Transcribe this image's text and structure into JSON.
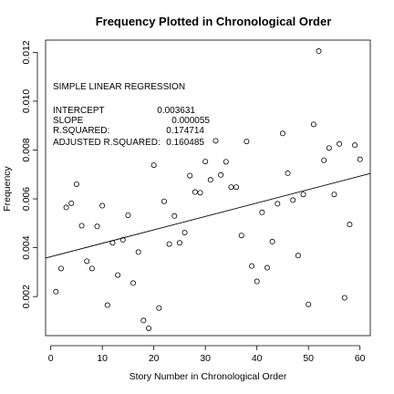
{
  "chart_data": {
    "type": "scatter",
    "title": "Frequency Plotted in Chronological Order",
    "xlabel": "Story Number in Chronological Order",
    "ylabel": "Frequency",
    "xlim": [
      -1,
      62
    ],
    "ylim": [
      0.0004,
      0.0125
    ],
    "xticks": [
      0,
      10,
      20,
      30,
      40,
      50,
      60
    ],
    "xtick_labels": [
      "0",
      "10",
      "20",
      "30",
      "40",
      "50",
      "60"
    ],
    "yticks": [
      0.002,
      0.004,
      0.006,
      0.008,
      0.01,
      0.012
    ],
    "ytick_labels": [
      "0.002",
      "0.004",
      "0.006",
      "0.008",
      "0.010",
      "0.012"
    ],
    "grid": false,
    "x": [
      1,
      2,
      3,
      4,
      5,
      6,
      7,
      8,
      9,
      10,
      11,
      12,
      13,
      14,
      15,
      16,
      17,
      18,
      19,
      20,
      21,
      22,
      23,
      24,
      25,
      26,
      27,
      28,
      29,
      30,
      31,
      32,
      33,
      34,
      35,
      36,
      37,
      38,
      39,
      40,
      41,
      42,
      43,
      44,
      45,
      46,
      47,
      48,
      49,
      50,
      51,
      52,
      53,
      54,
      55,
      56,
      57,
      58,
      59,
      60
    ],
    "y": [
      0.0022,
      0.00315,
      0.00565,
      0.00582,
      0.0066,
      0.0049,
      0.00345,
      0.00315,
      0.00487,
      0.00572,
      0.00165,
      0.0042,
      0.00288,
      0.00432,
      0.00533,
      0.00255,
      0.00382,
      0.00102,
      0.0007,
      0.00738,
      0.00153,
      0.0059,
      0.00415,
      0.0053,
      0.0042,
      0.00462,
      0.00695,
      0.00628,
      0.00625,
      0.00753,
      0.00678,
      0.00838,
      0.00698,
      0.00752,
      0.00648,
      0.00648,
      0.0045,
      0.00835,
      0.00325,
      0.00262,
      0.00545,
      0.00318,
      0.00425,
      0.0058,
      0.00868,
      0.00705,
      0.00595,
      0.00368,
      0.00618,
      0.00168,
      0.00905,
      0.01205,
      0.00758,
      0.00808,
      0.00618,
      0.00825,
      0.00195,
      0.00495,
      0.0082,
      0.00762
    ],
    "regression_line": {
      "intercept": 0.003631,
      "slope": 5.5e-05
    },
    "annotation": {
      "heading": "SIMPLE LINEAR REGRESSION",
      "rows": [
        {
          "label": "INTERCEPT",
          "value": "0.003631"
        },
        {
          "label": "SLOPE",
          "value": "0.000055"
        },
        {
          "label": "R.SQUARED:",
          "value": "0.174714"
        },
        {
          "label": "ADJUSTED R.SQUARED:",
          "value": "0.160485"
        }
      ]
    }
  }
}
